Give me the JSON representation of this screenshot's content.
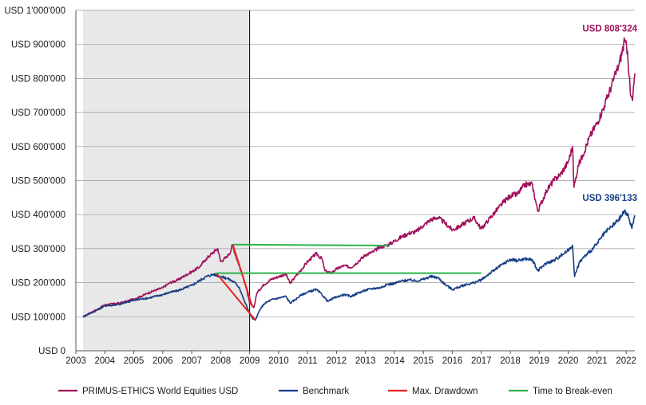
{
  "chart_data": {
    "type": "line",
    "title": "",
    "xlabel": "",
    "ylabel": "",
    "xlim": [
      2003.0,
      2022.3
    ],
    "ylim": [
      0,
      1000000
    ],
    "x_ticks": [
      "2003",
      "2004",
      "2005",
      "2006",
      "2007",
      "2008",
      "2009",
      "2010",
      "2011",
      "2012",
      "2013",
      "2014",
      "2015",
      "2016",
      "2017",
      "2018",
      "2019",
      "2020",
      "2021",
      "2022"
    ],
    "y_ticks": [
      {
        "value": 0,
        "label": "USD 0"
      },
      {
        "value": 100000,
        "label": "USD 100'000"
      },
      {
        "value": 200000,
        "label": "USD 200'000"
      },
      {
        "value": 300000,
        "label": "USD 300'000"
      },
      {
        "value": 400000,
        "label": "USD 400'000"
      },
      {
        "value": 500000,
        "label": "USD 500'000"
      },
      {
        "value": 600000,
        "label": "USD 600'000"
      },
      {
        "value": 700000,
        "label": "USD 700'000"
      },
      {
        "value": 800000,
        "label": "USD 800'000"
      },
      {
        "value": 900000,
        "label": "USD 900'000"
      },
      {
        "value": 1000000,
        "label": "USD 1'000'000"
      }
    ],
    "shaded_region": {
      "x_start": 2003.25,
      "x_end": 2009.0
    },
    "vertical_line_x": 2009.0,
    "colors": {
      "primus": "#a0125e",
      "benchmark": "#173e86",
      "drawdown": "#e8231f",
      "breakeven": "#2db34a",
      "shade": "#e8e8e8",
      "grid": "#9a9a9a"
    },
    "series": [
      {
        "name": "PRIMUS-ETHICS World Equities USD",
        "key": "primus",
        "end_label": "USD 808'324",
        "points": [
          [
            2003.25,
            100000
          ],
          [
            2003.5,
            112000
          ],
          [
            2003.75,
            122000
          ],
          [
            2004.0,
            135000
          ],
          [
            2004.25,
            138000
          ],
          [
            2004.5,
            140000
          ],
          [
            2004.75,
            145000
          ],
          [
            2005.0,
            152000
          ],
          [
            2005.25,
            160000
          ],
          [
            2005.5,
            170000
          ],
          [
            2005.75,
            178000
          ],
          [
            2006.0,
            185000
          ],
          [
            2006.25,
            200000
          ],
          [
            2006.5,
            207000
          ],
          [
            2006.75,
            220000
          ],
          [
            2007.0,
            232000
          ],
          [
            2007.25,
            245000
          ],
          [
            2007.5,
            270000
          ],
          [
            2007.75,
            290000
          ],
          [
            2007.9,
            300000
          ],
          [
            2008.0,
            262000
          ],
          [
            2008.2,
            275000
          ],
          [
            2008.35,
            292000
          ],
          [
            2008.4,
            312000
          ],
          [
            2008.55,
            272000
          ],
          [
            2008.7,
            235000
          ],
          [
            2008.85,
            195000
          ],
          [
            2009.0,
            140000
          ],
          [
            2009.15,
            128000
          ],
          [
            2009.25,
            170000
          ],
          [
            2009.5,
            195000
          ],
          [
            2009.75,
            210000
          ],
          [
            2010.0,
            218000
          ],
          [
            2010.25,
            225000
          ],
          [
            2010.4,
            198000
          ],
          [
            2010.6,
            220000
          ],
          [
            2010.8,
            240000
          ],
          [
            2011.0,
            262000
          ],
          [
            2011.3,
            285000
          ],
          [
            2011.5,
            270000
          ],
          [
            2011.6,
            235000
          ],
          [
            2011.8,
            228000
          ],
          [
            2012.0,
            240000
          ],
          [
            2012.25,
            250000
          ],
          [
            2012.5,
            245000
          ],
          [
            2012.75,
            262000
          ],
          [
            2013.0,
            282000
          ],
          [
            2013.25,
            290000
          ],
          [
            2013.5,
            305000
          ],
          [
            2013.75,
            310000
          ],
          [
            2014.0,
            322000
          ],
          [
            2014.25,
            335000
          ],
          [
            2014.5,
            345000
          ],
          [
            2014.75,
            350000
          ],
          [
            2015.0,
            368000
          ],
          [
            2015.25,
            385000
          ],
          [
            2015.5,
            392000
          ],
          [
            2015.75,
            375000
          ],
          [
            2016.0,
            355000
          ],
          [
            2016.25,
            365000
          ],
          [
            2016.5,
            380000
          ],
          [
            2016.75,
            390000
          ],
          [
            2017.0,
            358000
          ],
          [
            2017.25,
            385000
          ],
          [
            2017.5,
            410000
          ],
          [
            2017.75,
            435000
          ],
          [
            2018.0,
            455000
          ],
          [
            2018.25,
            460000
          ],
          [
            2018.5,
            488000
          ],
          [
            2018.75,
            490000
          ],
          [
            2018.95,
            410000
          ],
          [
            2019.25,
            470000
          ],
          [
            2019.5,
            500000
          ],
          [
            2019.75,
            520000
          ],
          [
            2020.0,
            555000
          ],
          [
            2020.15,
            600000
          ],
          [
            2020.2,
            480000
          ],
          [
            2020.35,
            545000
          ],
          [
            2020.5,
            575000
          ],
          [
            2020.75,
            630000
          ],
          [
            2021.0,
            670000
          ],
          [
            2021.25,
            720000
          ],
          [
            2021.5,
            780000
          ],
          [
            2021.75,
            840000
          ],
          [
            2021.95,
            910000
          ],
          [
            2022.05,
            880000
          ],
          [
            2022.15,
            750000
          ],
          [
            2022.22,
            735000
          ],
          [
            2022.3,
            815000
          ]
        ]
      },
      {
        "name": "Benchmark",
        "key": "benchmark",
        "end_label": "USD 396'133",
        "points": [
          [
            2003.25,
            100000
          ],
          [
            2003.5,
            110000
          ],
          [
            2003.75,
            120000
          ],
          [
            2004.0,
            132000
          ],
          [
            2004.25,
            134000
          ],
          [
            2004.5,
            136000
          ],
          [
            2004.75,
            143000
          ],
          [
            2005.0,
            148000
          ],
          [
            2005.25,
            152000
          ],
          [
            2005.5,
            155000
          ],
          [
            2005.75,
            160000
          ],
          [
            2006.0,
            165000
          ],
          [
            2006.25,
            172000
          ],
          [
            2006.5,
            176000
          ],
          [
            2006.75,
            184000
          ],
          [
            2007.0,
            192000
          ],
          [
            2007.25,
            205000
          ],
          [
            2007.5,
            218000
          ],
          [
            2007.75,
            225000
          ],
          [
            2008.0,
            218000
          ],
          [
            2008.25,
            212000
          ],
          [
            2008.5,
            200000
          ],
          [
            2008.65,
            185000
          ],
          [
            2008.8,
            150000
          ],
          [
            2008.95,
            120000
          ],
          [
            2009.1,
            95000
          ],
          [
            2009.2,
            90000
          ],
          [
            2009.35,
            120000
          ],
          [
            2009.5,
            138000
          ],
          [
            2009.75,
            150000
          ],
          [
            2010.0,
            155000
          ],
          [
            2010.25,
            160000
          ],
          [
            2010.4,
            140000
          ],
          [
            2010.6,
            152000
          ],
          [
            2010.8,
            165000
          ],
          [
            2011.0,
            172000
          ],
          [
            2011.3,
            180000
          ],
          [
            2011.5,
            165000
          ],
          [
            2011.7,
            145000
          ],
          [
            2011.9,
            155000
          ],
          [
            2012.25,
            165000
          ],
          [
            2012.5,
            160000
          ],
          [
            2012.75,
            170000
          ],
          [
            2013.0,
            178000
          ],
          [
            2013.25,
            183000
          ],
          [
            2013.5,
            185000
          ],
          [
            2013.75,
            195000
          ],
          [
            2014.0,
            198000
          ],
          [
            2014.25,
            205000
          ],
          [
            2014.5,
            208000
          ],
          [
            2014.75,
            205000
          ],
          [
            2015.0,
            210000
          ],
          [
            2015.25,
            218000
          ],
          [
            2015.5,
            215000
          ],
          [
            2015.75,
            195000
          ],
          [
            2016.0,
            180000
          ],
          [
            2016.25,
            188000
          ],
          [
            2016.5,
            195000
          ],
          [
            2016.75,
            200000
          ],
          [
            2017.0,
            208000
          ],
          [
            2017.25,
            225000
          ],
          [
            2017.5,
            240000
          ],
          [
            2017.75,
            255000
          ],
          [
            2018.0,
            268000
          ],
          [
            2018.25,
            265000
          ],
          [
            2018.5,
            270000
          ],
          [
            2018.75,
            268000
          ],
          [
            2018.95,
            235000
          ],
          [
            2019.25,
            258000
          ],
          [
            2019.5,
            265000
          ],
          [
            2019.75,
            280000
          ],
          [
            2020.0,
            295000
          ],
          [
            2020.15,
            310000
          ],
          [
            2020.22,
            218000
          ],
          [
            2020.4,
            262000
          ],
          [
            2020.6,
            280000
          ],
          [
            2020.85,
            300000
          ],
          [
            2021.0,
            315000
          ],
          [
            2021.25,
            345000
          ],
          [
            2021.5,
            365000
          ],
          [
            2021.75,
            385000
          ],
          [
            2021.95,
            412000
          ],
          [
            2022.1,
            390000
          ],
          [
            2022.2,
            360000
          ],
          [
            2022.3,
            398000
          ]
        ]
      },
      {
        "name": "Max. Drawdown",
        "key": "drawdown",
        "segments": [
          [
            [
              2008.42,
              312000
            ],
            [
              2009.1,
              128000
            ]
          ],
          [
            [
              2007.85,
              228000
            ],
            [
              2009.2,
              90000
            ]
          ]
        ]
      },
      {
        "name": "Time to Break-even",
        "key": "breakeven",
        "segments": [
          [
            [
              2008.42,
              312000
            ],
            [
              2013.8,
              309000
            ]
          ],
          [
            [
              2007.85,
              228000
            ],
            [
              2017.0,
              228000
            ]
          ]
        ]
      }
    ],
    "legend": {
      "placement": "bottom",
      "entries": [
        {
          "label": "PRIMUS-ETHICS World Equities USD",
          "key": "primus"
        },
        {
          "label": "Benchmark",
          "key": "benchmark"
        },
        {
          "label": "Max. Drawdown",
          "key": "drawdown"
        },
        {
          "label": "Time to Break-even",
          "key": "breakeven"
        }
      ]
    }
  }
}
